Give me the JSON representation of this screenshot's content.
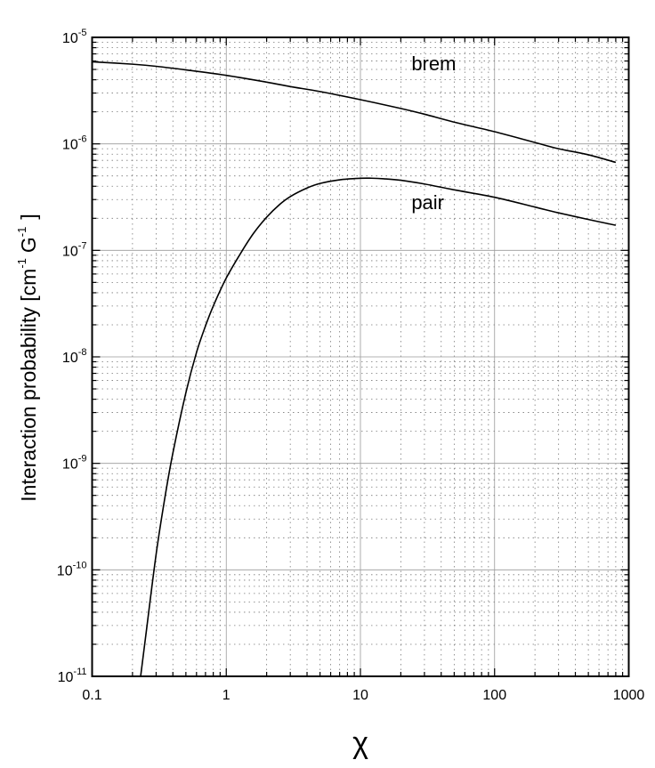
{
  "chart_data": {
    "type": "line",
    "xlabel": "χ",
    "ylabel": "Interaction probability [cm⁻¹ G⁻¹]",
    "ylabel_parts": {
      "main": "Interaction probability [cm",
      "sup1": "-1",
      "mid": "G",
      "sup2": "-1",
      "end": "]"
    },
    "xscale": "log",
    "yscale": "log",
    "xlim": [
      0.1,
      1000
    ],
    "ylim": [
      1e-11,
      1e-05
    ],
    "grid": true,
    "x_ticks": [
      {
        "value": 0.1,
        "label": "0.1"
      },
      {
        "value": 1,
        "label": "1"
      },
      {
        "value": 10,
        "label": "10"
      },
      {
        "value": 100,
        "label": "100"
      },
      {
        "value": 1000,
        "label": "1000"
      }
    ],
    "y_ticks": [
      {
        "value": 1e-11,
        "base": "10",
        "exp": "-11"
      },
      {
        "value": 1e-10,
        "base": "10",
        "exp": "-10"
      },
      {
        "value": 1e-09,
        "base": "10",
        "exp": "-9"
      },
      {
        "value": 1e-08,
        "base": "10",
        "exp": "-8"
      },
      {
        "value": 1e-07,
        "base": "10",
        "exp": "-7"
      },
      {
        "value": 1e-06,
        "base": "10",
        "exp": "-6"
      },
      {
        "value": 1e-05,
        "base": "10",
        "exp": "-5"
      }
    ],
    "series": [
      {
        "name": "brem",
        "label_at": [
          24,
          4.9e-06
        ],
        "x": [
          0.1,
          0.2,
          0.3,
          0.5,
          1,
          2,
          3,
          5,
          10,
          20,
          30,
          50,
          100,
          200,
          300,
          500,
          800
        ],
        "y": [
          5.9e-06,
          5.6e-06,
          5.35e-06,
          4.95e-06,
          4.4e-06,
          3.8e-06,
          3.45e-06,
          3.1e-06,
          2.6e-06,
          2.15e-06,
          1.9e-06,
          1.6e-06,
          1.3e-06,
          1.03e-06,
          9e-07,
          7.9e-07,
          6.7e-07
        ]
      },
      {
        "name": "pair",
        "label_at": [
          24,
          2.45e-07
        ],
        "x": [
          0.23,
          0.25,
          0.3,
          0.35,
          0.4,
          0.5,
          0.6,
          0.7,
          0.8,
          1,
          1.3,
          1.6,
          2,
          2.5,
          3,
          4,
          5,
          7,
          10,
          12,
          15,
          20,
          30,
          50,
          100,
          200,
          300,
          500,
          800
        ],
        "y": [
          1e-11,
          2.3e-11,
          1.4e-10,
          4.9e-10,
          1.25e-09,
          4.6e-09,
          1.1e-08,
          1.95e-08,
          3e-08,
          5.5e-08,
          9.7e-08,
          1.45e-07,
          2.05e-07,
          2.7e-07,
          3.2e-07,
          3.85e-07,
          4.25e-07,
          4.6e-07,
          4.75e-07,
          4.76e-07,
          4.7e-07,
          4.55e-07,
          4.2e-07,
          3.7e-07,
          3.15e-07,
          2.55e-07,
          2.25e-07,
          1.95e-07,
          1.72e-07
        ]
      }
    ]
  }
}
